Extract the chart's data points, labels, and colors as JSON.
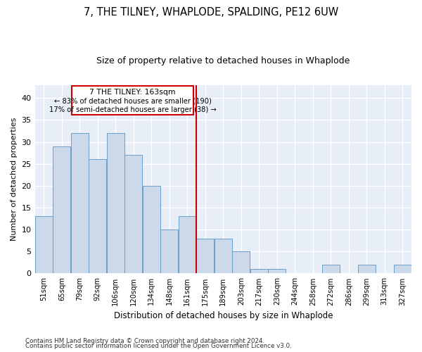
{
  "title1": "7, THE TILNEY, WHAPLODE, SPALDING, PE12 6UW",
  "title2": "Size of property relative to detached houses in Whaplode",
  "xlabel": "Distribution of detached houses by size in Whaplode",
  "ylabel": "Number of detached properties",
  "categories": [
    "51sqm",
    "65sqm",
    "79sqm",
    "92sqm",
    "106sqm",
    "120sqm",
    "134sqm",
    "148sqm",
    "161sqm",
    "175sqm",
    "189sqm",
    "203sqm",
    "217sqm",
    "230sqm",
    "244sqm",
    "258sqm",
    "272sqm",
    "286sqm",
    "299sqm",
    "313sqm",
    "327sqm"
  ],
  "values": [
    13,
    29,
    32,
    26,
    32,
    27,
    20,
    10,
    13,
    8,
    8,
    5,
    1,
    1,
    0,
    0,
    2,
    0,
    2,
    0,
    2
  ],
  "bar_color": "#ccd9ea",
  "bar_edge_color": "#6a9fcb",
  "marker_line_color": "#cc0000",
  "annotation_box_color": "#cc0000",
  "ylim": [
    0,
    43
  ],
  "yticks": [
    0,
    5,
    10,
    15,
    20,
    25,
    30,
    35,
    40
  ],
  "marker_label": "7 THE TILNEY: 163sqm",
  "annotation_line1": "← 83% of detached houses are smaller (190)",
  "annotation_line2": "17% of semi-detached houses are larger (38) →",
  "footer1": "Contains HM Land Registry data © Crown copyright and database right 2024.",
  "footer2": "Contains public sector information licensed under the Open Government Licence v3.0.",
  "bg_color": "#e8eef8",
  "fig_bg_color": "#ffffff"
}
